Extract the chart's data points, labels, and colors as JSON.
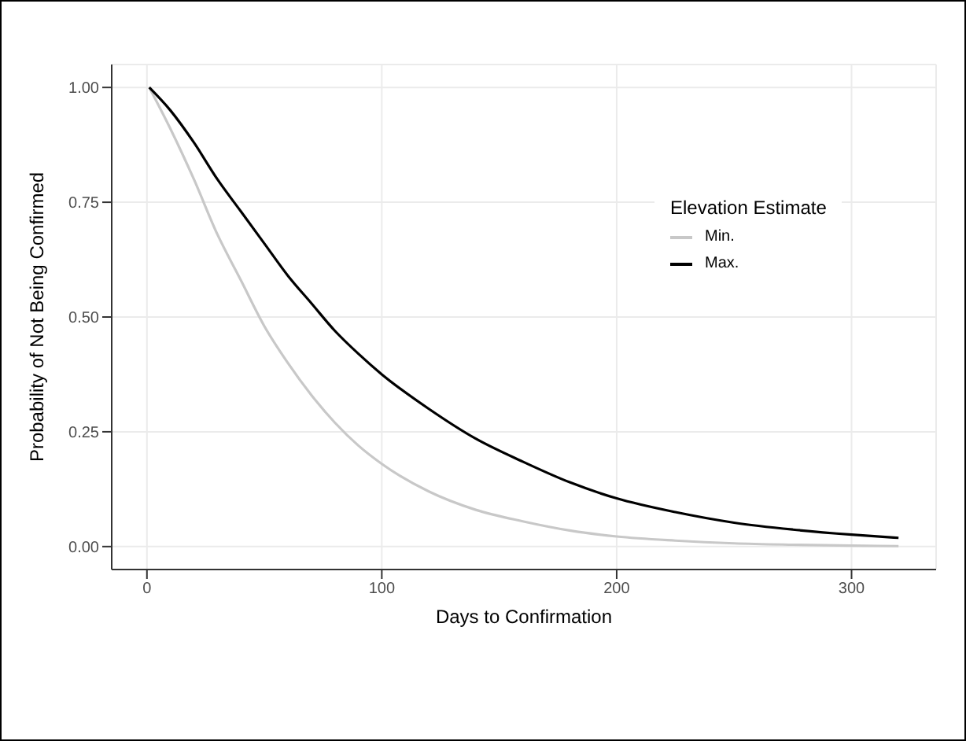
{
  "chart_data": {
    "type": "line",
    "xlabel": "Days to Confirmation",
    "ylabel": "Probability of Not Being Confirmed",
    "legend_title": "Elevation Estimate",
    "x": [
      1,
      10,
      20,
      30,
      40,
      50,
      60,
      70,
      80,
      90,
      100,
      120,
      140,
      160,
      180,
      200,
      225,
      250,
      275,
      300,
      320
    ],
    "series": [
      {
        "name": "Min.",
        "color": "#c8c8c8",
        "values": [
          1.0,
          0.91,
          0.8,
          0.68,
          0.58,
          0.48,
          0.4,
          0.33,
          0.27,
          0.22,
          0.18,
          0.12,
          0.08,
          0.055,
          0.035,
          0.022,
          0.013,
          0.007,
          0.004,
          0.002,
          0.001
        ]
      },
      {
        "name": "Max.",
        "color": "#000000",
        "values": [
          1.0,
          0.95,
          0.88,
          0.8,
          0.73,
          0.66,
          0.59,
          0.53,
          0.47,
          0.42,
          0.375,
          0.3,
          0.235,
          0.185,
          0.14,
          0.105,
          0.075,
          0.052,
          0.037,
          0.026,
          0.019
        ]
      }
    ],
    "xlim": [
      -15,
      336
    ],
    "xticks": [
      0,
      100,
      200,
      300
    ],
    "ylim": [
      -0.05,
      1.05
    ],
    "yticks": [
      {
        "value": 0,
        "label": "0.00"
      },
      {
        "value": 0.25,
        "label": "0.25"
      },
      {
        "value": 0.5,
        "label": "0.50"
      },
      {
        "value": 0.75,
        "label": "0.75"
      },
      {
        "value": 1,
        "label": "1.00"
      }
    ],
    "grid": true,
    "legend": "top right",
    "marker": "none",
    "line_style": "solid"
  }
}
